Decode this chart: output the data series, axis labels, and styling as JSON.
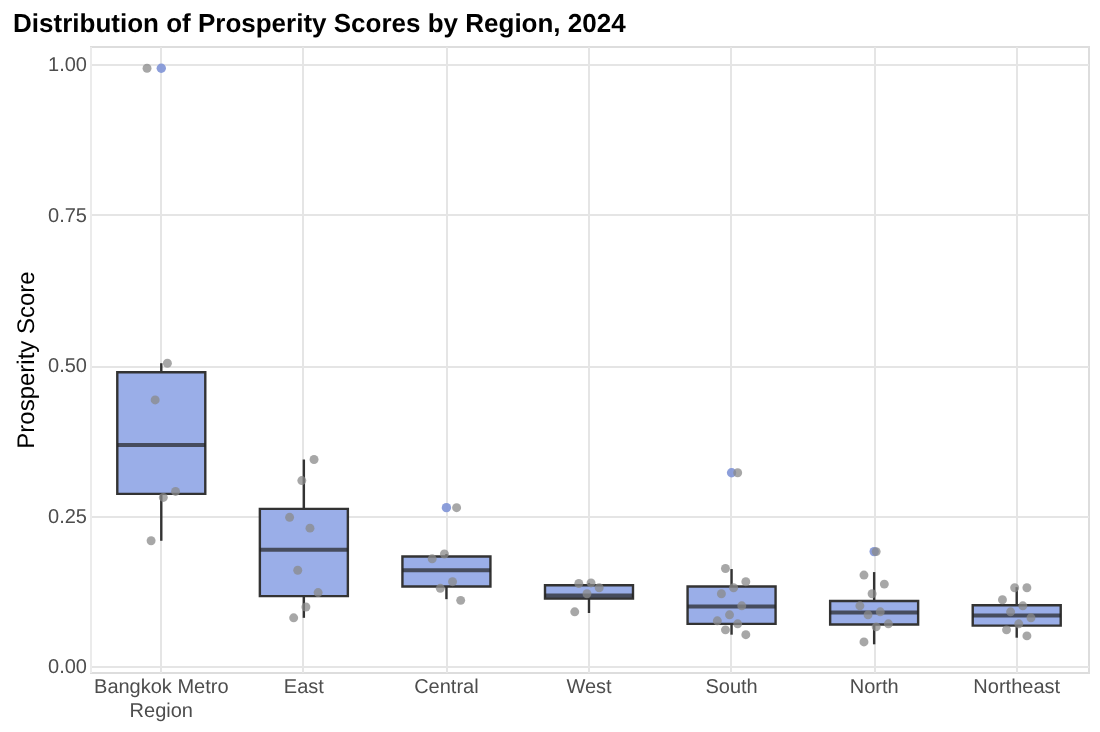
{
  "chart_data": {
    "type": "box",
    "title": "Distribution of Prosperity Scores by Region, 2024",
    "ylabel": "Prosperity Score",
    "categories": [
      "Bangkok Metro Region",
      "East",
      "Central",
      "West",
      "South",
      "North",
      "Northeast"
    ],
    "boxes": [
      {
        "low": 0.208,
        "q1": 0.286,
        "median": 0.367,
        "q3": 0.488,
        "high": 0.503,
        "outliers": [
          0.993
        ]
      },
      {
        "low": 0.08,
        "q1": 0.116,
        "median": 0.193,
        "q3": 0.261,
        "high": 0.343
      },
      {
        "low": 0.111,
        "q1": 0.132,
        "median": 0.159,
        "q3": 0.182,
        "high": 0.186,
        "outliers": [
          0.263
        ]
      },
      {
        "low": 0.088,
        "q1": 0.112,
        "median": 0.117,
        "q3": 0.134,
        "high": 0.138
      },
      {
        "low": 0.052,
        "q1": 0.07,
        "median": 0.099,
        "q3": 0.132,
        "high": 0.161,
        "outliers": [
          0.321
        ]
      },
      {
        "low": 0.036,
        "q1": 0.069,
        "median": 0.089,
        "q3": 0.108,
        "high": 0.156,
        "outliers": [
          0.19
        ]
      },
      {
        "low": 0.047,
        "q1": 0.067,
        "median": 0.084,
        "q3": 0.101,
        "high": 0.131
      }
    ],
    "series": [
      {
        "type": "scatter",
        "color": "#8a8a8a",
        "x": [
          "Bangkok Metro Region",
          "Bangkok Metro Region",
          "Bangkok Metro Region",
          "Bangkok Metro Region",
          "Bangkok Metro Region",
          "Bangkok Metro Region",
          "East",
          "East",
          "East",
          "East",
          "East",
          "East",
          "East",
          "East",
          "Central",
          "Central",
          "Central",
          "Central",
          "Central",
          "Central",
          "West",
          "West",
          "West",
          "West",
          "West",
          "South",
          "South",
          "South",
          "South",
          "South",
          "South",
          "South",
          "South",
          "South",
          "South",
          "South",
          "North",
          "North",
          "North",
          "North",
          "North",
          "North",
          "North",
          "North",
          "North",
          "North",
          "Northeast",
          "Northeast",
          "Northeast",
          "Northeast",
          "Northeast",
          "Northeast",
          "Northeast",
          "Northeast",
          "Northeast"
        ],
        "values": [
          0.993,
          0.503,
          0.442,
          0.29,
          0.28,
          0.208,
          0.343,
          0.308,
          0.247,
          0.229,
          0.159,
          0.122,
          0.098,
          0.08,
          0.263,
          0.186,
          0.178,
          0.14,
          0.129,
          0.109,
          0.138,
          0.137,
          0.13,
          0.12,
          0.09,
          0.321,
          0.162,
          0.14,
          0.13,
          0.12,
          0.1,
          0.085,
          0.075,
          0.07,
          0.06,
          0.052,
          0.19,
          0.151,
          0.136,
          0.12,
          0.1,
          0.09,
          0.085,
          0.07,
          0.065,
          0.04,
          0.13,
          0.13,
          0.11,
          0.1,
          0.09,
          0.08,
          0.07,
          0.06,
          0.05
        ]
      }
    ],
    "colors": [
      "#9aaee8",
      "#9aaee8",
      "#9aaee8",
      "#9aaee8",
      "#9aaee8",
      "#9aaee8",
      "#9aaee8"
    ],
    "ylim": [
      -0.01,
      1.03
    ],
    "yticks": [
      {
        "value": 0,
        "label": "0.00"
      },
      {
        "value": 0.25,
        "label": "0.25"
      },
      {
        "value": 0.5,
        "label": "0.50"
      },
      {
        "value": 0.75,
        "label": "0.75"
      },
      {
        "value": 1.0,
        "label": "1.00"
      }
    ],
    "grid": true
  }
}
